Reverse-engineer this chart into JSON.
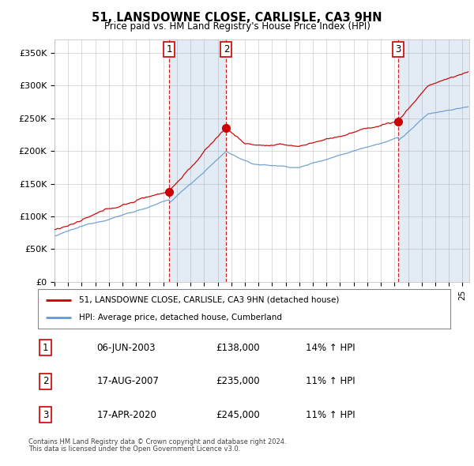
{
  "title": "51, LANSDOWNE CLOSE, CARLISLE, CA3 9HN",
  "subtitle": "Price paid vs. HM Land Registry's House Price Index (HPI)",
  "ylabel_ticks": [
    "£0",
    "£50K",
    "£100K",
    "£150K",
    "£200K",
    "£250K",
    "£300K",
    "£350K"
  ],
  "ytick_values": [
    0,
    50000,
    100000,
    150000,
    200000,
    250000,
    300000,
    350000
  ],
  "ylim": [
    0,
    370000
  ],
  "xlim_start": 1995.0,
  "xlim_end": 2025.5,
  "purchases": [
    {
      "num": 1,
      "date_str": "06-JUN-2003",
      "date_x": 2003.43,
      "price": 138000,
      "pct": "14%",
      "dir": "↑"
    },
    {
      "num": 2,
      "date_str": "17-AUG-2007",
      "date_x": 2007.63,
      "price": 235000,
      "pct": "11%",
      "dir": "↑"
    },
    {
      "num": 3,
      "date_str": "17-APR-2020",
      "date_x": 2020.29,
      "price": 245000,
      "pct": "11%",
      "dir": "↑"
    }
  ],
  "hpi_color": "#6699cc",
  "price_color": "#cc0000",
  "shade_color": "#ddeeff",
  "legend_label_price": "51, LANSDOWNE CLOSE, CARLISLE, CA3 9HN (detached house)",
  "legend_label_hpi": "HPI: Average price, detached house, Cumberland",
  "footnote1": "Contains HM Land Registry data © Crown copyright and database right 2024.",
  "footnote2": "This data is licensed under the Open Government Licence v3.0.",
  "table_rows": [
    [
      "1",
      "06-JUN-2003",
      "£138,000",
      "14% ↑ HPI"
    ],
    [
      "2",
      "17-AUG-2007",
      "£235,000",
      "11% ↑ HPI"
    ],
    [
      "3",
      "17-APR-2020",
      "£245,000",
      "11% ↑ HPI"
    ]
  ],
  "background_color": "#ffffff",
  "grid_color": "#cccccc",
  "plot_bg_color": "#ffffff"
}
